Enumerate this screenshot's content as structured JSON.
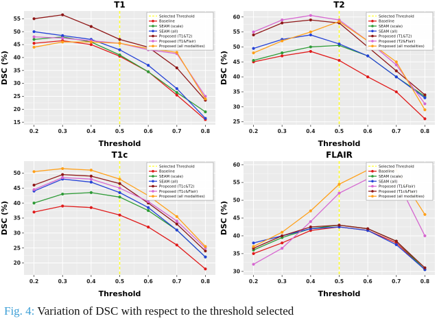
{
  "caption": {
    "label": "Fig. 4:",
    "text": " Variation of DSC with respect to the threshold selected"
  },
  "style": {
    "plot_bg": "#EBEBEB",
    "grid_major": "#FFFFFF",
    "grid_minor": "#F7F7F7",
    "tick_text": "#222222",
    "threshold_color": "#FFFF2E"
  },
  "chart_data": [
    {
      "type": "line",
      "title": "T1",
      "xlabel": "Threshold",
      "ylabel": "DSC (%)",
      "x": [
        0.2,
        0.3,
        0.4,
        0.5,
        0.6,
        0.7,
        0.8
      ],
      "ylim": [
        14,
        58
      ],
      "yticks": [
        15,
        20,
        25,
        30,
        35,
        40,
        45,
        50,
        55
      ],
      "selected_threshold": 0.5,
      "threshold_label": "Selected Threshold",
      "legend_position": "top-right",
      "grid": true,
      "series": [
        {
          "name": "Baseline",
          "color": "#E01A1A",
          "values": [
            45.5,
            46.5,
            45,
            40.5,
            34.5,
            25.5,
            16
          ]
        },
        {
          "name": "SEAM (scale)",
          "color": "#2E9B37",
          "values": [
            47,
            48,
            46,
            41,
            34.5,
            26.5,
            19
          ]
        },
        {
          "name": "SEAM (all)",
          "color": "#2442D6",
          "values": [
            50,
            48.5,
            47,
            43,
            37,
            28,
            16.5
          ]
        },
        {
          "name": "Proposed (T1&T2)",
          "color": "#8E1616",
          "values": [
            55,
            56.5,
            52,
            47,
            44,
            36,
            23.5
          ]
        },
        {
          "name": "Proposed (T1&Flair)",
          "color": "#D667D0",
          "values": [
            48,
            47.5,
            46.5,
            45.5,
            43,
            41.5,
            25
          ]
        },
        {
          "name": "Proposed (all modalities)",
          "color": "#FFA019",
          "values": [
            44,
            46,
            46,
            45.5,
            43.5,
            42,
            24
          ]
        }
      ]
    },
    {
      "type": "line",
      "title": "T2",
      "xlabel": "Threshold",
      "ylabel": "DSC (%)",
      "x": [
        0.2,
        0.3,
        0.4,
        0.5,
        0.6,
        0.7,
        0.8
      ],
      "ylim": [
        24,
        62
      ],
      "yticks": [
        25,
        30,
        35,
        40,
        45,
        50,
        55,
        60
      ],
      "selected_threshold": 0.5,
      "threshold_label": "Selected Threshold",
      "legend_position": "top-right",
      "grid": true,
      "series": [
        {
          "name": "Baseline",
          "color": "#E01A1A",
          "values": [
            45,
            47,
            48.5,
            45.5,
            40,
            35,
            26
          ]
        },
        {
          "name": "SEAM (scale)",
          "color": "#2E9B37",
          "values": [
            45.5,
            48,
            50,
            50.5,
            47,
            40,
            33.5
          ]
        },
        {
          "name": "SEAM (all)",
          "color": "#2442D6",
          "values": [
            49.5,
            52.5,
            54,
            51,
            47,
            40,
            33
          ]
        },
        {
          "name": "Proposed (T1&T2)",
          "color": "#8E1616",
          "values": [
            54,
            58,
            59,
            58,
            50,
            42,
            34
          ]
        },
        {
          "name": "Proposed (T2&Flair)",
          "color": "#D667D0",
          "values": [
            55,
            59,
            60.5,
            59,
            52,
            44,
            31
          ]
        },
        {
          "name": "Proposed (all modalities)",
          "color": "#FFA019",
          "values": [
            48,
            52,
            55,
            58.5,
            52,
            45,
            29
          ]
        }
      ]
    },
    {
      "type": "line",
      "title": "T1c",
      "xlabel": "Threshold",
      "ylabel": "DSC (%)",
      "x": [
        0.2,
        0.3,
        0.4,
        0.5,
        0.6,
        0.7,
        0.8
      ],
      "ylim": [
        16,
        54
      ],
      "yticks": [
        20,
        25,
        30,
        35,
        40,
        45,
        50
      ],
      "selected_threshold": 0.5,
      "threshold_label": "Selected Threshold",
      "legend_position": "top-right",
      "grid": true,
      "series": [
        {
          "name": "Baseline",
          "color": "#E01A1A",
          "values": [
            37,
            39,
            38.5,
            36,
            32,
            26,
            18
          ]
        },
        {
          "name": "SEAM (scale)",
          "color": "#2E9B37",
          "values": [
            40,
            43,
            43.5,
            42,
            37.5,
            31,
            22
          ]
        },
        {
          "name": "SEAM (all)",
          "color": "#2442D6",
          "values": [
            44,
            48,
            47,
            43.5,
            38.5,
            31,
            22
          ]
        },
        {
          "name": "Proposed (T1c&T2)",
          "color": "#8E1616",
          "values": [
            46,
            49.5,
            49,
            46.5,
            40,
            33,
            24
          ]
        },
        {
          "name": "Proposed (T1c&Flair)",
          "color": "#D667D0",
          "values": [
            44.5,
            48.5,
            48,
            45,
            40.5,
            34,
            25
          ]
        },
        {
          "name": "Proposed (all modalities)",
          "color": "#FFA019",
          "values": [
            50.5,
            51.5,
            51,
            48,
            42.5,
            35.5,
            25.5
          ]
        }
      ]
    },
    {
      "type": "line",
      "title": "FLAIR",
      "xlabel": "Threshold",
      "ylabel": "DSC (%)",
      "x": [
        0.2,
        0.3,
        0.4,
        0.5,
        0.6,
        0.7,
        0.8
      ],
      "ylim": [
        29,
        61
      ],
      "yticks": [
        30,
        35,
        40,
        45,
        50,
        55,
        60
      ],
      "selected_threshold": 0.5,
      "threshold_label": "Selected Threshold",
      "legend_position": "top-right",
      "grid": true,
      "series": [
        {
          "name": "Baseline",
          "color": "#E01A1A",
          "values": [
            35,
            38,
            41.5,
            42.5,
            41.5,
            38,
            30.5
          ]
        },
        {
          "name": "SEAM (scale)",
          "color": "#2E9B37",
          "values": [
            36,
            39.5,
            42,
            43,
            42,
            38.5,
            30.5
          ]
        },
        {
          "name": "SEAM (all)",
          "color": "#2442D6",
          "values": [
            38,
            40,
            42,
            42.5,
            41.5,
            37.5,
            30.5
          ]
        },
        {
          "name": "Proposed (T1&Flair)",
          "color": "#D667D0",
          "values": [
            32,
            36.5,
            44,
            52,
            56,
            56,
            40
          ]
        },
        {
          "name": "Proposed (T1c&Flair)",
          "color": "#8E1616",
          "values": [
            36.5,
            40,
            42.5,
            43,
            42,
            38.5,
            31
          ]
        },
        {
          "name": "Proposed (all modalities)",
          "color": "#FFA019",
          "values": [
            37,
            41,
            47,
            54.5,
            58.5,
            58.5,
            46
          ]
        }
      ]
    }
  ]
}
